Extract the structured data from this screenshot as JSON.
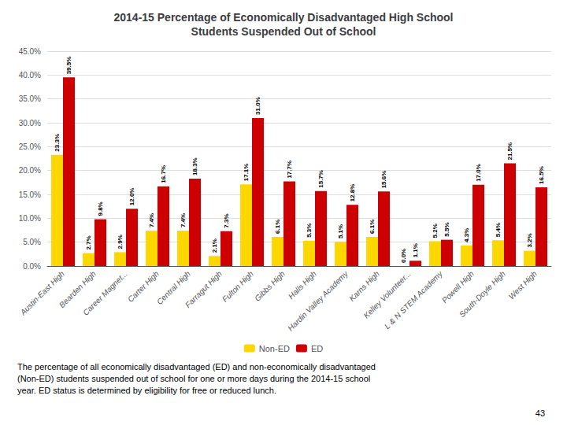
{
  "chart_data": {
    "type": "bar",
    "title": "2014-15 Percentage of Economically Disadvantaged High School\nStudents Suspended Out of School",
    "categories": [
      "Austin-East High",
      "Bearden High",
      "Career Magnet...",
      "Carter High",
      "Central High",
      "Farragut High",
      "Fulton High",
      "Gibbs High",
      "Halls High",
      "Hardin Valley Academy",
      "Karns High",
      "Kelley Volunteer...",
      "L & N STEM Academy",
      "Powell High",
      "South-Doyle High",
      "West High"
    ],
    "series": [
      {
        "name": "Non-ED",
        "color": "#FFD700",
        "values": [
          23.3,
          2.7,
          2.9,
          7.4,
          7.4,
          2.1,
          17.1,
          6.1,
          5.3,
          5.1,
          6.1,
          0.0,
          5.2,
          4.3,
          5.4,
          3.2
        ],
        "value_labels": [
          "23.3%",
          "2.7%",
          "2.9%",
          "7.4%",
          "7.4%",
          "2.1%",
          "17.1%",
          "6.1%",
          "5.3%",
          "5.1%",
          "6.1%",
          "0.0%",
          "5.2%",
          "4.3%",
          "5.4%",
          "3.2%"
        ]
      },
      {
        "name": "ED",
        "color": "#CC0000",
        "values": [
          39.5,
          9.8,
          12.0,
          16.7,
          18.3,
          7.3,
          31.0,
          17.7,
          15.7,
          12.8,
          15.6,
          1.1,
          5.5,
          17.0,
          21.5,
          16.5
        ],
        "value_labels": [
          "39.5%",
          "9.8%",
          "12.0%",
          "16.7%",
          "18.3%",
          "7.3%",
          "31.0%",
          "17.7%",
          "15.7%",
          "12.8%",
          "15.6%",
          "1.1%",
          "5.5%",
          "17.0%",
          "21.5%",
          "16.5%"
        ]
      }
    ],
    "ylim": [
      0,
      45
    ],
    "yticks": [
      {
        "value": 0.0,
        "label": "0.0%"
      },
      {
        "value": 5.0,
        "label": "5.0%"
      },
      {
        "value": 10.0,
        "label": "10.0%"
      },
      {
        "value": 15.0,
        "label": "15.0%"
      },
      {
        "value": 20.0,
        "label": "20.0%"
      },
      {
        "value": 25.0,
        "label": "25.0%"
      },
      {
        "value": 30.0,
        "label": "30.0%"
      },
      {
        "value": 35.0,
        "label": "35.0%"
      },
      {
        "value": 40.0,
        "label": "40.0%"
      },
      {
        "value": 45.0,
        "label": "45.0%"
      }
    ],
    "grid": true,
    "data_labels": true,
    "legend": "bottom",
    "footnote": [
      "The percentage of all economically disadvantaged (ED) and non-economically disadvantaged",
      "(Non-ED) students suspended out of school for one or more days during the 2014-15 school",
      "year. ED status is determined by eligibility for free or reduced lunch."
    ],
    "page_number": "43"
  }
}
